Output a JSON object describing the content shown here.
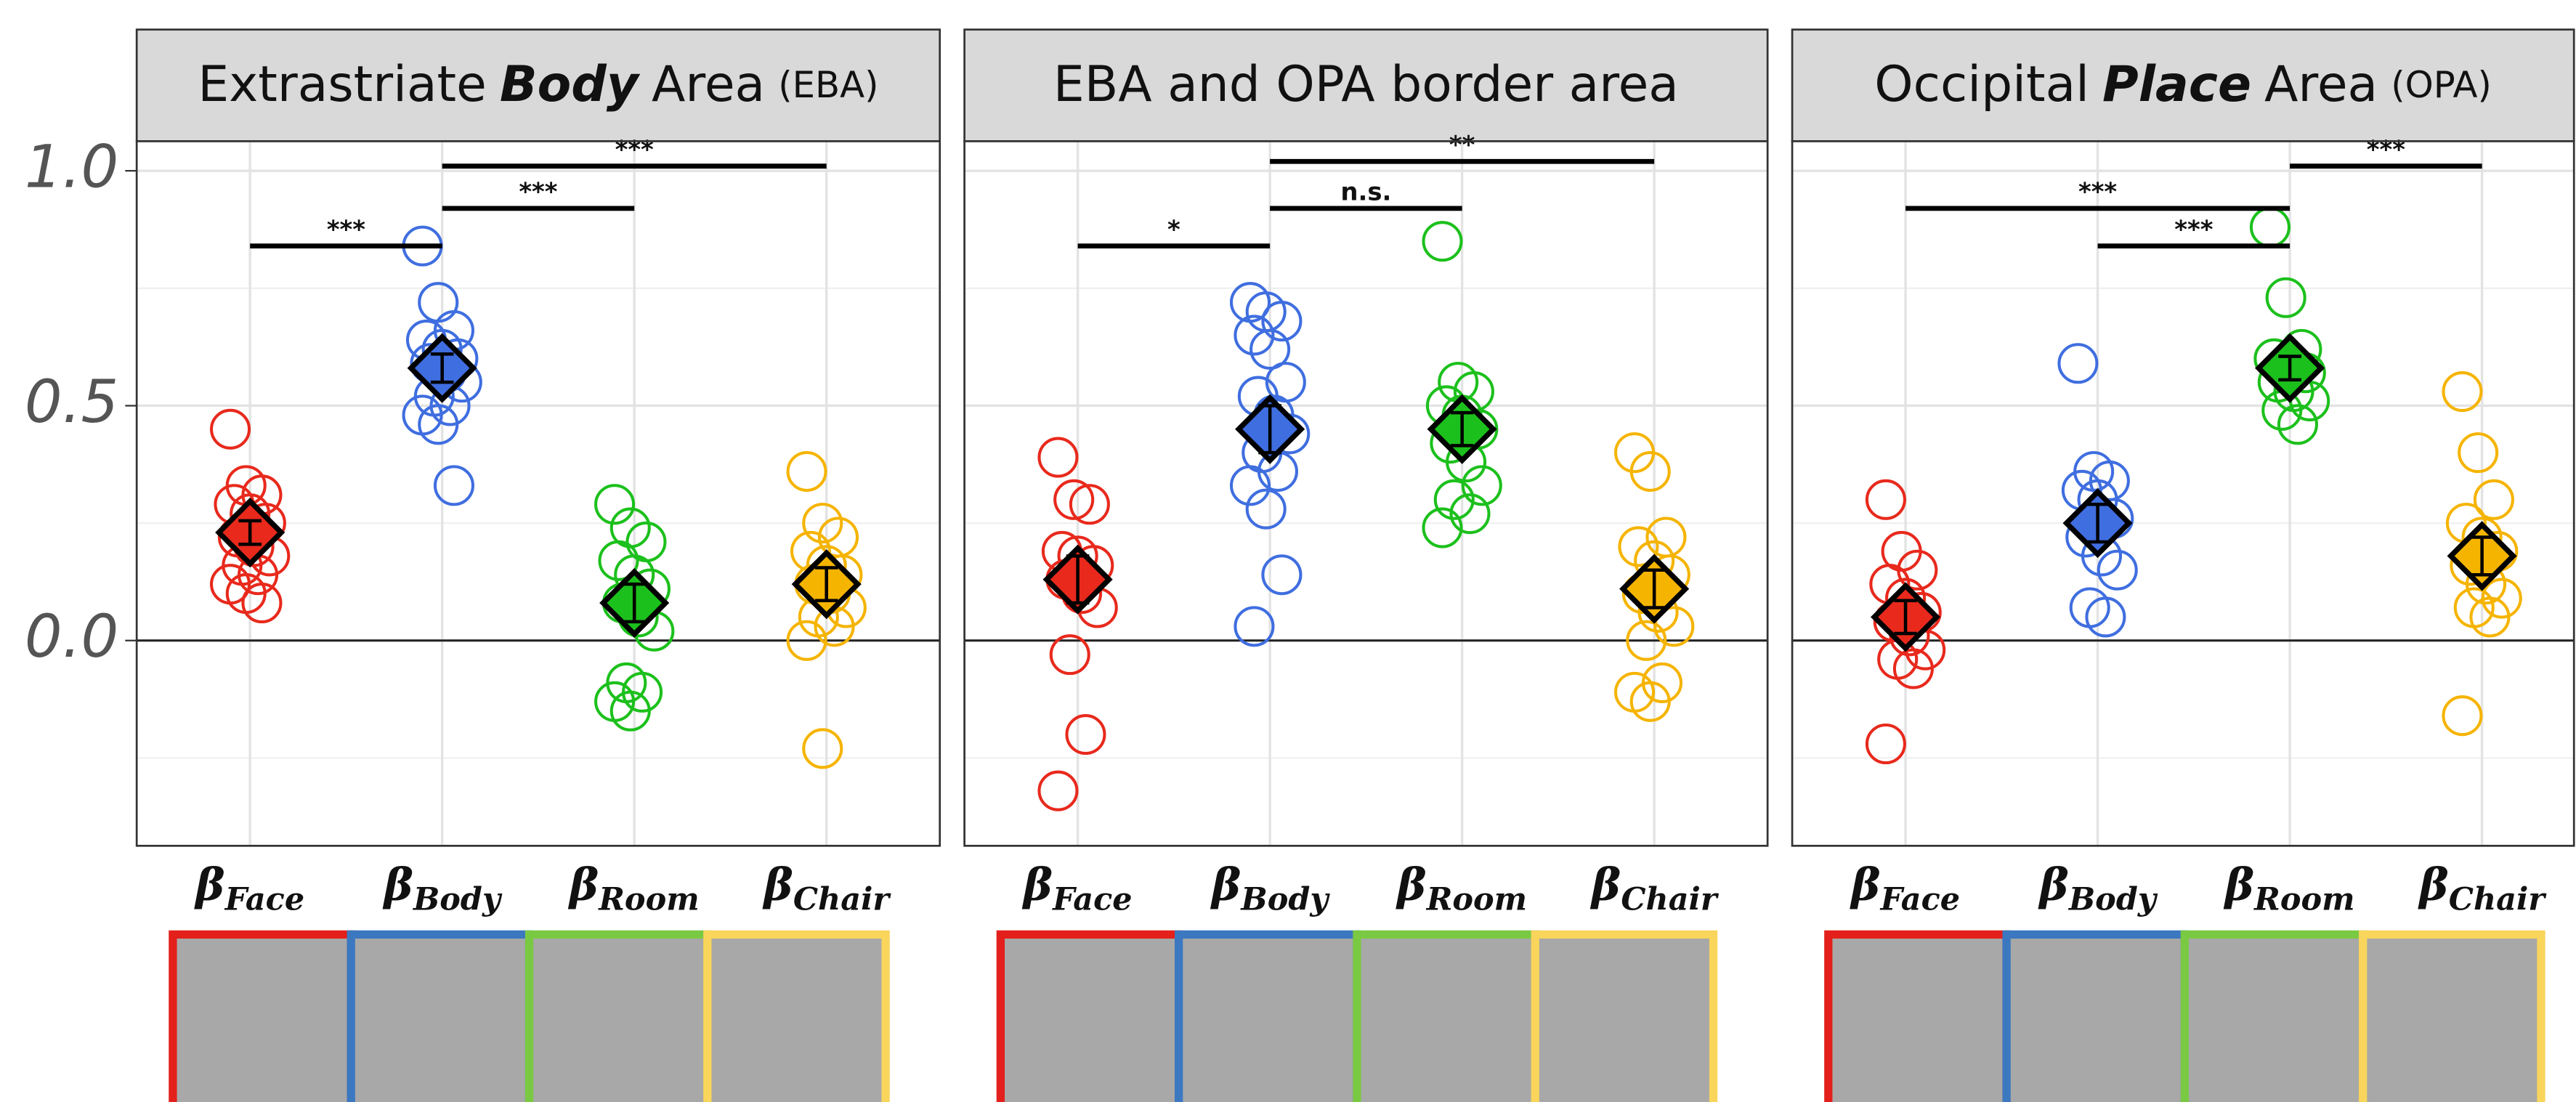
{
  "chart_data": {
    "type": "strip",
    "ylim": [
      -0.437,
      1.063
    ],
    "yticks": [
      {
        "value": 0,
        "label": "0.0"
      },
      {
        "value": 0.5,
        "label": "0.5"
      },
      {
        "value": 1,
        "label": "1.0"
      }
    ],
    "minor_yticks": [
      -0.25,
      0.25,
      0.75
    ],
    "grid": true,
    "hline": 0,
    "category_symbol": "β",
    "categories": [
      "Face",
      "Body",
      "Room",
      "Chair"
    ],
    "colors": [
      "#e8291c",
      "#3f6ee0",
      "#1cc01c",
      "#f5b400"
    ],
    "panels": [
      {
        "title": [
          {
            "text": "Extrastriate"
          },
          {
            "text": "Body",
            "style": "bold-italic"
          },
          {
            "text": "Area"
          },
          {
            "text": "(EBA)",
            "style": "small"
          }
        ],
        "points": [
          [
            0.45,
            0.33,
            0.31,
            0.29,
            0.27,
            0.25,
            0.22,
            0.2,
            0.18,
            0.16,
            0.14,
            0.12,
            0.1,
            0.08
          ],
          [
            0.84,
            0.72,
            0.66,
            0.64,
            0.62,
            0.6,
            0.59,
            0.57,
            0.55,
            0.52,
            0.5,
            0.48,
            0.46,
            0.33
          ],
          [
            0.29,
            0.24,
            0.21,
            0.17,
            0.14,
            0.11,
            0.08,
            0.05,
            0.02,
            -0.09,
            -0.11,
            -0.13,
            -0.15
          ],
          [
            0.36,
            0.25,
            0.22,
            0.19,
            0.16,
            0.14,
            0.12,
            0.1,
            0.07,
            0.05,
            0.03,
            0.0,
            -0.23
          ]
        ],
        "means": [
          0.23,
          0.58,
          0.08,
          0.12
        ],
        "errors": [
          0.025,
          0.03,
          0.04,
          0.035
        ],
        "comparisons": [
          {
            "from": 0,
            "to": 1,
            "y": 0.84,
            "label": "***"
          },
          {
            "from": 1,
            "to": 2,
            "y": 0.92,
            "label": "***"
          },
          {
            "from": 1,
            "to": 3,
            "y": 1.01,
            "label": "***"
          }
        ]
      },
      {
        "title": [
          {
            "text": "EBA and OPA border area"
          }
        ],
        "points": [
          [
            0.39,
            0.3,
            0.29,
            0.19,
            0.18,
            0.16,
            0.13,
            0.1,
            0.07,
            -0.03,
            -0.2,
            -0.32
          ],
          [
            0.72,
            0.7,
            0.68,
            0.65,
            0.62,
            0.55,
            0.52,
            0.48,
            0.44,
            0.4,
            0.36,
            0.33,
            0.28,
            0.14,
            0.03
          ],
          [
            0.85,
            0.55,
            0.53,
            0.5,
            0.48,
            0.45,
            0.42,
            0.38,
            0.33,
            0.3,
            0.27,
            0.24
          ],
          [
            0.4,
            0.36,
            0.22,
            0.2,
            0.17,
            0.14,
            0.1,
            0.06,
            0.03,
            0.0,
            -0.09,
            -0.11,
            -0.13
          ]
        ],
        "means": [
          0.13,
          0.45,
          0.45,
          0.11
        ],
        "errors": [
          0.05,
          0.05,
          0.035,
          0.04
        ],
        "comparisons": [
          {
            "from": 0,
            "to": 1,
            "y": 0.84,
            "label": "*"
          },
          {
            "from": 1,
            "to": 2,
            "y": 0.92,
            "label": "n.s."
          },
          {
            "from": 1,
            "to": 3,
            "y": 1.02,
            "label": "**"
          }
        ]
      },
      {
        "title": [
          {
            "text": "Occipital"
          },
          {
            "text": "Place",
            "style": "bold-italic"
          },
          {
            "text": "Area"
          },
          {
            "text": "(OPA)",
            "style": "small"
          }
        ],
        "points": [
          [
            0.3,
            0.19,
            0.15,
            0.12,
            0.09,
            0.06,
            0.04,
            0.01,
            -0.02,
            -0.04,
            -0.06,
            -0.22
          ],
          [
            0.59,
            0.36,
            0.34,
            0.32,
            0.3,
            0.26,
            0.22,
            0.18,
            0.15,
            0.07,
            0.05
          ],
          [
            0.88,
            0.73,
            0.62,
            0.6,
            0.58,
            0.57,
            0.55,
            0.53,
            0.51,
            0.49,
            0.46
          ],
          [
            0.53,
            0.4,
            0.3,
            0.25,
            0.22,
            0.19,
            0.16,
            0.12,
            0.09,
            0.07,
            0.05,
            -0.16
          ]
        ],
        "means": [
          0.05,
          0.25,
          0.58,
          0.18
        ],
        "errors": [
          0.035,
          0.04,
          0.025,
          0.04
        ],
        "comparisons": [
          {
            "from": 0,
            "to": 2,
            "y": 0.92,
            "label": "***"
          },
          {
            "from": 1,
            "to": 2,
            "y": 0.84,
            "label": "***"
          },
          {
            "from": 2,
            "to": 3,
            "y": 1.01,
            "label": "***"
          }
        ]
      }
    ]
  }
}
